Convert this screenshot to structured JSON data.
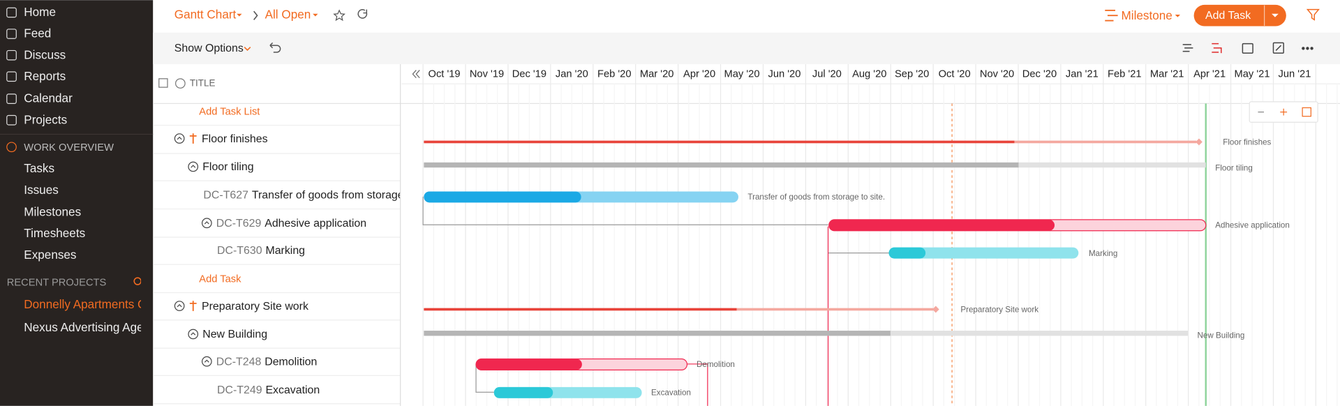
{
  "sidebar": {
    "nav": [
      "Home",
      "Feed",
      "Discuss",
      "Reports",
      "Calendar",
      "Projects"
    ],
    "section": "WORK OVERVIEW",
    "work_items": [
      "Tasks",
      "Issues",
      "Milestones",
      "Timesheets",
      "Expenses"
    ],
    "recent_title": "RECENT PROJECTS",
    "recent": [
      "Donnelly Apartments C",
      "Nexus Advertising Age"
    ]
  },
  "toolbar": {
    "view": "Gantt Chart",
    "filter": "All Open",
    "milestone": "Milestone",
    "add_task": "Add Task",
    "show_options": "Show Options"
  },
  "list": {
    "title_header": "TITLE",
    "rows": [
      {
        "name": "Add Task List"
      },
      {
        "name": "Floor finishes"
      },
      {
        "name": "Floor tiling"
      },
      {
        "id": "DC-T627",
        "name": "Transfer of goods from storage to s"
      },
      {
        "id": "DC-T629",
        "name": "Adhesive application"
      },
      {
        "id": "DC-T630",
        "name": "Marking"
      },
      {
        "name": "Add Task"
      },
      {
        "name": "Preparatory Site work"
      },
      {
        "name": "New Building"
      },
      {
        "id": "DC-T248",
        "name": "Demolition"
      },
      {
        "id": "DC-T249",
        "name": "Excavation"
      }
    ]
  },
  "timeline": {
    "months": [
      "Oct '19",
      "Nov '19",
      "Dec '19",
      "Jan '20",
      "Feb '20",
      "Mar '20",
      "Apr '20",
      "May '20",
      "Jun '20",
      "Jul '20",
      "Aug '20",
      "Sep '20",
      "Oct '20",
      "Nov '20",
      "Dec '20",
      "Jan '21",
      "Feb '21",
      "Mar '21",
      "Apr '21",
      "May '21",
      "Jun '21"
    ],
    "bar_labels": [
      "Floor finishes",
      "Floor tiling",
      "Transfer of goods from storage to site.",
      "Adhesive application",
      "Marking",
      "Preparatory Site work",
      "New Building",
      "Demolition",
      "Excavation"
    ]
  }
}
